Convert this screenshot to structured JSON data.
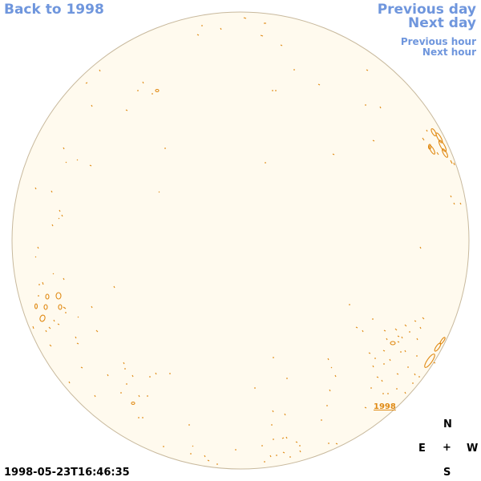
{
  "nav": {
    "back": "Back to 1998",
    "previous_day": "Previous day",
    "next_day": "Next day",
    "previous_hour": "Previous hour",
    "next_hour": "Next hour"
  },
  "compass": {
    "north": "N",
    "east": "E",
    "center": "+",
    "west": "W",
    "south": "S"
  },
  "timestamp": "1998-05-23T16:46:35",
  "region_label": "1998",
  "colors": {
    "link": "#6f96dd",
    "disk_fill": "#fffaee",
    "disk_border": "#c8b99d",
    "contour": "#e08a14"
  }
}
